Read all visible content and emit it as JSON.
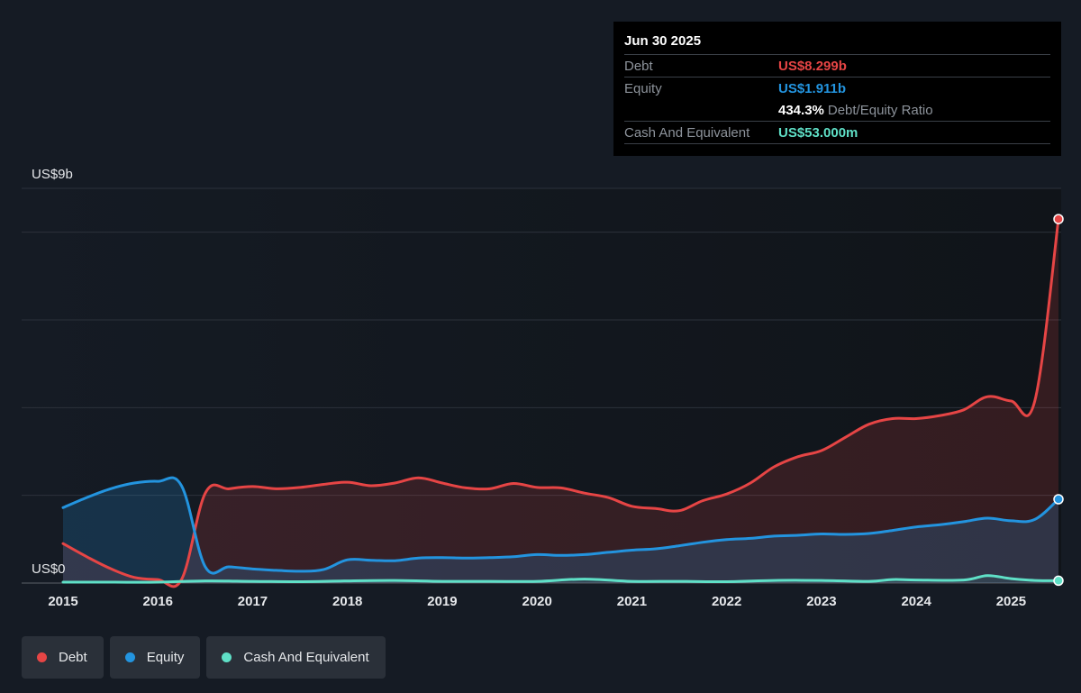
{
  "tooltip": {
    "date": "Jun 30 2025",
    "debt_label": "Debt",
    "debt_value": "US$8.299b",
    "equity_label": "Equity",
    "equity_value": "US$1.911b",
    "ratio_value": "434.3%",
    "ratio_label": "Debt/Equity Ratio",
    "cash_label": "Cash And Equivalent",
    "cash_value": "US$53.000m"
  },
  "legend": [
    {
      "label": "Debt",
      "color": "#e64545"
    },
    {
      "label": "Equity",
      "color": "#2394df"
    },
    {
      "label": "Cash And Equivalent",
      "color": "#5fe0c7"
    }
  ],
  "chart_data": {
    "type": "area",
    "y_unit_labels": {
      "top": "US$9b",
      "bottom": "US$0"
    },
    "ylim": [
      0,
      9
    ],
    "xlim": [
      2015,
      2025.5
    ],
    "x_ticks": [
      "2015",
      "2016",
      "2017",
      "2018",
      "2019",
      "2020",
      "2021",
      "2022",
      "2023",
      "2024",
      "2025"
    ],
    "grid": true,
    "legend_position": "bottom-left",
    "colors": {
      "Debt": "#e64545",
      "Equity": "#2394df",
      "Cash And Equivalent": "#5fe0c7"
    },
    "series": [
      {
        "name": "Debt",
        "points": [
          [
            2015.0,
            0.9
          ],
          [
            2015.25,
            0.6
          ],
          [
            2015.5,
            0.33
          ],
          [
            2015.75,
            0.13
          ],
          [
            2016.0,
            0.08
          ],
          [
            2016.25,
            0.08
          ],
          [
            2016.5,
            2.05
          ],
          [
            2016.75,
            2.15
          ],
          [
            2017.0,
            2.2
          ],
          [
            2017.25,
            2.15
          ],
          [
            2017.5,
            2.18
          ],
          [
            2017.75,
            2.25
          ],
          [
            2018.0,
            2.3
          ],
          [
            2018.25,
            2.22
          ],
          [
            2018.5,
            2.28
          ],
          [
            2018.75,
            2.4
          ],
          [
            2019.0,
            2.28
          ],
          [
            2019.25,
            2.17
          ],
          [
            2019.5,
            2.15
          ],
          [
            2019.75,
            2.27
          ],
          [
            2020.0,
            2.18
          ],
          [
            2020.25,
            2.17
          ],
          [
            2020.5,
            2.05
          ],
          [
            2020.75,
            1.95
          ],
          [
            2021.0,
            1.75
          ],
          [
            2021.25,
            1.7
          ],
          [
            2021.5,
            1.65
          ],
          [
            2021.75,
            1.88
          ],
          [
            2022.0,
            2.03
          ],
          [
            2022.25,
            2.28
          ],
          [
            2022.5,
            2.65
          ],
          [
            2022.75,
            2.88
          ],
          [
            2023.0,
            3.02
          ],
          [
            2023.25,
            3.32
          ],
          [
            2023.5,
            3.62
          ],
          [
            2023.75,
            3.75
          ],
          [
            2024.0,
            3.75
          ],
          [
            2024.25,
            3.82
          ],
          [
            2024.5,
            3.95
          ],
          [
            2024.75,
            4.25
          ],
          [
            2025.0,
            4.15
          ],
          [
            2025.25,
            4.15
          ],
          [
            2025.5,
            8.299
          ]
        ]
      },
      {
        "name": "Equity",
        "points": [
          [
            2015.0,
            1.72
          ],
          [
            2015.25,
            1.95
          ],
          [
            2015.5,
            2.15
          ],
          [
            2015.75,
            2.28
          ],
          [
            2016.0,
            2.32
          ],
          [
            2016.25,
            2.22
          ],
          [
            2016.5,
            0.37
          ],
          [
            2016.75,
            0.37
          ],
          [
            2017.0,
            0.32
          ],
          [
            2017.25,
            0.29
          ],
          [
            2017.5,
            0.27
          ],
          [
            2017.75,
            0.31
          ],
          [
            2018.0,
            0.53
          ],
          [
            2018.25,
            0.52
          ],
          [
            2018.5,
            0.51
          ],
          [
            2018.75,
            0.57
          ],
          [
            2019.0,
            0.58
          ],
          [
            2019.25,
            0.57
          ],
          [
            2019.5,
            0.58
          ],
          [
            2019.75,
            0.6
          ],
          [
            2020.0,
            0.65
          ],
          [
            2020.25,
            0.63
          ],
          [
            2020.5,
            0.65
          ],
          [
            2020.75,
            0.7
          ],
          [
            2021.0,
            0.75
          ],
          [
            2021.25,
            0.78
          ],
          [
            2021.5,
            0.85
          ],
          [
            2021.75,
            0.93
          ],
          [
            2022.0,
            0.99
          ],
          [
            2022.25,
            1.02
          ],
          [
            2022.5,
            1.07
          ],
          [
            2022.75,
            1.09
          ],
          [
            2023.0,
            1.12
          ],
          [
            2023.25,
            1.11
          ],
          [
            2023.5,
            1.13
          ],
          [
            2023.75,
            1.2
          ],
          [
            2024.0,
            1.28
          ],
          [
            2024.25,
            1.33
          ],
          [
            2024.5,
            1.4
          ],
          [
            2024.75,
            1.48
          ],
          [
            2025.0,
            1.42
          ],
          [
            2025.25,
            1.45
          ],
          [
            2025.5,
            1.911
          ]
        ]
      },
      {
        "name": "Cash And Equivalent",
        "points": [
          [
            2015.0,
            0.02
          ],
          [
            2015.5,
            0.02
          ],
          [
            2016.0,
            0.02
          ],
          [
            2016.5,
            0.05
          ],
          [
            2017.0,
            0.04
          ],
          [
            2017.5,
            0.03
          ],
          [
            2018.0,
            0.05
          ],
          [
            2018.5,
            0.06
          ],
          [
            2019.0,
            0.04
          ],
          [
            2019.5,
            0.04
          ],
          [
            2020.0,
            0.04
          ],
          [
            2020.5,
            0.09
          ],
          [
            2021.0,
            0.04
          ],
          [
            2021.5,
            0.04
          ],
          [
            2022.0,
            0.03
          ],
          [
            2022.5,
            0.06
          ],
          [
            2023.0,
            0.06
          ],
          [
            2023.5,
            0.04
          ],
          [
            2023.75,
            0.08
          ],
          [
            2024.0,
            0.07
          ],
          [
            2024.5,
            0.07
          ],
          [
            2024.75,
            0.17
          ],
          [
            2025.0,
            0.1
          ],
          [
            2025.25,
            0.06
          ],
          [
            2025.5,
            0.053
          ]
        ]
      }
    ]
  }
}
